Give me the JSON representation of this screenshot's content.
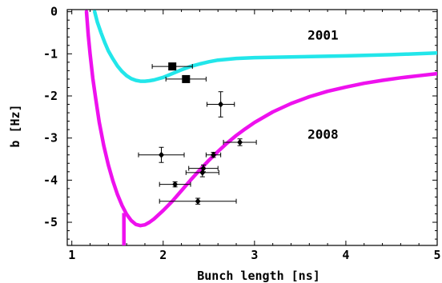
{
  "chart_data": {
    "type": "scatter",
    "xlabel": "Bunch length [ns]",
    "ylabel": "b [Hz]",
    "xlim": [
      0.95,
      5.0
    ],
    "ylim": [
      -5.55,
      0.05
    ],
    "xticks": [
      1,
      2,
      3,
      4,
      5
    ],
    "yticks": [
      0,
      -1,
      -2,
      -3,
      -4,
      -5
    ],
    "grid": false,
    "colors": {
      "curve_2001": "#22e6ea",
      "curve_2008": "#ee11ee",
      "points": "#000000"
    },
    "curves": [
      {
        "label": "2001",
        "x": [
          1.25,
          1.28,
          1.32,
          1.36,
          1.4,
          1.45,
          1.5,
          1.55,
          1.6,
          1.65,
          1.7,
          1.75,
          1.8,
          1.85,
          1.9,
          2.0,
          2.1,
          2.2,
          2.3,
          2.4,
          2.5,
          2.6,
          2.8,
          3.0,
          3.5,
          4.0,
          4.5,
          5.0
        ],
        "y": [
          0.0,
          -0.25,
          -0.5,
          -0.73,
          -0.93,
          -1.12,
          -1.29,
          -1.42,
          -1.52,
          -1.59,
          -1.63,
          -1.65,
          -1.65,
          -1.64,
          -1.62,
          -1.56,
          -1.47,
          -1.38,
          -1.3,
          -1.24,
          -1.19,
          -1.15,
          -1.11,
          -1.09,
          -1.07,
          -1.05,
          -1.02,
          -0.98
        ]
      },
      {
        "label": "2008",
        "x": [
          1.16,
          1.18,
          1.2,
          1.23,
          1.26,
          1.3,
          1.35,
          1.4,
          1.45,
          1.5,
          1.55,
          1.6,
          1.65,
          1.7,
          1.75,
          1.8,
          1.85,
          1.9,
          2.0,
          2.1,
          2.2,
          2.3,
          2.4,
          2.5,
          2.6,
          2.7,
          2.8,
          2.9,
          3.0,
          3.2,
          3.4,
          3.6,
          3.8,
          4.0,
          4.2,
          4.4,
          4.6,
          4.8,
          5.0
        ],
        "y": [
          0.0,
          -0.55,
          -1.0,
          -1.58,
          -2.05,
          -2.62,
          -3.18,
          -3.64,
          -4.02,
          -4.34,
          -4.6,
          -4.81,
          -4.96,
          -5.05,
          -5.08,
          -5.06,
          -5.0,
          -4.92,
          -4.72,
          -4.5,
          -4.25,
          -4.0,
          -3.76,
          -3.53,
          -3.32,
          -3.12,
          -2.94,
          -2.78,
          -2.63,
          -2.38,
          -2.18,
          -2.02,
          -1.89,
          -1.79,
          -1.7,
          -1.63,
          -1.57,
          -1.52,
          -1.47
        ]
      }
    ],
    "spike": {
      "x": 1.57,
      "y_from": -4.78,
      "y_to": -5.55
    },
    "series": [
      {
        "name": "2001",
        "marker": "square",
        "points": [
          {
            "x": 2.1,
            "y": -1.3,
            "xerr": 0.22,
            "yerr": 0.05
          },
          {
            "x": 2.25,
            "y": -1.6,
            "xerr": 0.22,
            "yerr": 0.05
          }
        ]
      },
      {
        "name": "2008",
        "marker": "diamond",
        "points": [
          {
            "x": 2.63,
            "y": -2.2,
            "xerr": 0.15,
            "yerr": 0.3
          },
          {
            "x": 2.84,
            "y": -3.1,
            "xerr": 0.18,
            "yerr": 0.08
          },
          {
            "x": 1.98,
            "y": -3.4,
            "xerr": 0.25,
            "yerr": 0.18
          },
          {
            "x": 2.55,
            "y": -3.4,
            "xerr": 0.08,
            "yerr": 0.06
          },
          {
            "x": 2.44,
            "y": -3.72,
            "xerr": 0.16,
            "yerr": 0.08
          },
          {
            "x": 2.43,
            "y": -3.82,
            "xerr": 0.18,
            "yerr": 0.1
          },
          {
            "x": 2.13,
            "y": -4.1,
            "xerr": 0.17,
            "yerr": 0.06
          },
          {
            "x": 2.38,
            "y": -4.5,
            "xerr": 0.42,
            "yerr": 0.07
          }
        ]
      }
    ],
    "annotations": [
      {
        "text": "2001",
        "x": 3.75,
        "y": -0.55
      },
      {
        "text": "2008",
        "x": 3.75,
        "y": -2.9
      }
    ]
  }
}
